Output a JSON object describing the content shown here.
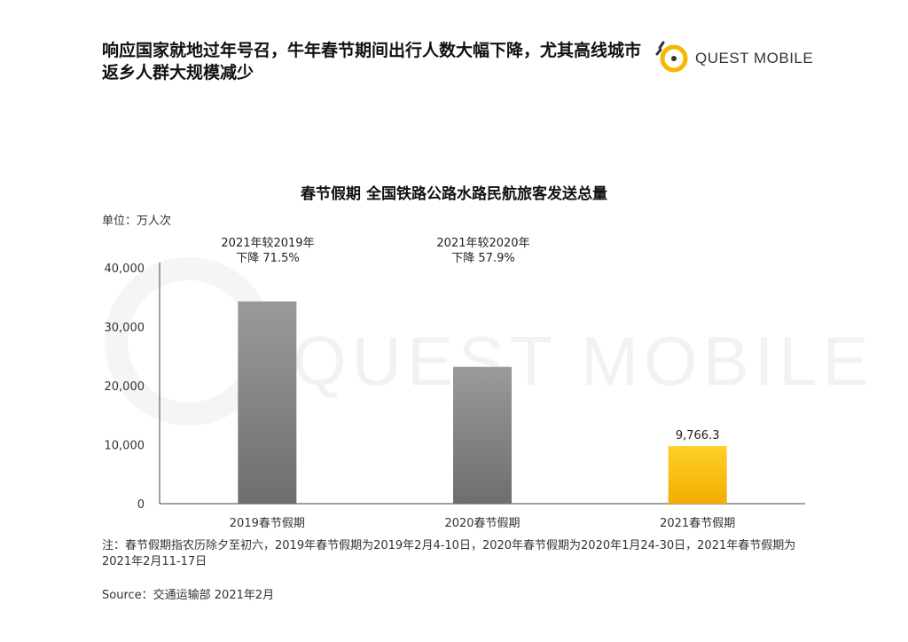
{
  "headline": "响应国家就地过年号召，牛年春节期间出行人数大幅下降，尤其高线城市返乡人群大规模减少",
  "logo": {
    "text": "QUEST MOBILE"
  },
  "watermark": "QUEST MOBILE",
  "chart_data": {
    "type": "bar",
    "title": "春节假期 全国铁路公路水路民航旅客发送总量",
    "unit_label": "单位：万人次",
    "categories": [
      "2019春节假期",
      "2020春节假期",
      "2021春节假期"
    ],
    "values": [
      34300,
      23200,
      9766.3
    ],
    "data_labels": [
      null,
      null,
      "9,766.3"
    ],
    "bar_colors": [
      "#7a7a7a",
      "#7a7a7a",
      "#f5b800"
    ],
    "ylim": [
      0,
      40000
    ],
    "yticks": [
      0,
      10000,
      20000,
      30000,
      40000
    ],
    "ytick_labels": [
      "0",
      "10,000",
      "20,000",
      "30,000",
      "40,000"
    ],
    "grid": false,
    "annotations": [
      {
        "line1": "2021年较2019年",
        "line2": "下降 71.5%"
      },
      {
        "line1": "2021年较2020年",
        "line2": "下降 57.9%"
      }
    ]
  },
  "footnote": "注：春节假期指农历除夕至初六，2019年春节假期为2019年2月4-10日，2020年春节假期为2020年1月24-30日，2021年春节假期为2021年2月11-17日",
  "source": "Source：交通运输部 2021年2月"
}
